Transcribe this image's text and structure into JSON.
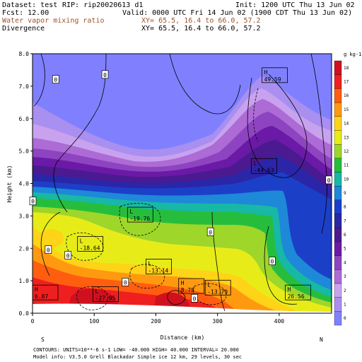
{
  "header": {
    "dataset": "Dataset: test",
    "rip": "RIP: rip20020613 d1",
    "init": "Init: 1200 UTC Thu 13 Jun 02",
    "fcst": "Fcst:   12.00",
    "valid": "Valid: 0000 UTC Fri 14 Jun 02 (1900 CDT Thu 13 Jun 02)",
    "field1": "Water vapor mixing ratio",
    "field1_xy": "XY=  65.5, 16.4 to  66.0, 57.2",
    "field2": "Divergence",
    "field2_xy": "XY=  65.5, 16.4 to  66.0, 57.2",
    "field1_color": "#a0522d"
  },
  "footer": {
    "line1": "CONTOURS:  UNITS=10**-6 s-1   LOW=  -40.000     HIGH=  40.000     INTERVAL=   20.000",
    "line2": "Model info: V3.5.0   Grell     Blackadar   Simple ice     12 km,  29 levels,   30 sec"
  },
  "chart_data": {
    "type": "heatmap",
    "xlabel": "Distance (km)",
    "ylabel": "Height (km)",
    "xlim": [
      0,
      485
    ],
    "ylim": [
      0,
      8
    ],
    "x_ticks": [
      0,
      100,
      200,
      300,
      400
    ],
    "y_ticks": [
      "0.0",
      "1.0",
      "2.0",
      "3.0",
      "4.0",
      "5.0",
      "6.0",
      "7.0",
      "8.0"
    ],
    "x_end_labels": {
      "left": "S",
      "right": "N"
    },
    "colorbar_unit": "g kg-1",
    "colorbar_ticks": [
      0,
      1,
      2,
      3,
      4,
      5,
      6,
      7,
      8,
      9,
      10,
      11,
      12,
      13,
      14,
      15,
      16,
      17,
      18
    ],
    "colorbar_colors": [
      "#8080ff",
      "#a98ff0",
      "#c8a2ef",
      "#ad6bd6",
      "#8e44c0",
      "#6a1aa6",
      "#4b1a90",
      "#2b25a8",
      "#1c3fc8",
      "#1e88d9",
      "#17b8a5",
      "#27bd3c",
      "#9ed62a",
      "#e7ec19",
      "#ffd317",
      "#ff9a10",
      "#ff5e10",
      "#f01f1f",
      "#d0101f"
    ],
    "contour_labels": [
      {
        "text": "0",
        "x": 37,
        "z": 7.2
      },
      {
        "text": "0",
        "x": 117,
        "z": 7.35
      },
      {
        "text": "0",
        "x": 480,
        "z": 4.1
      },
      {
        "text": "0",
        "x": 0,
        "z": 3.45
      },
      {
        "text": "0",
        "x": 288,
        "z": 2.5
      },
      {
        "text": "0",
        "x": 25,
        "z": 1.95
      },
      {
        "text": "0",
        "x": 57,
        "z": 1.78
      },
      {
        "text": "0",
        "x": 388,
        "z": 1.6
      },
      {
        "text": "0",
        "x": 150,
        "z": 0.95
      },
      {
        "text": "0",
        "x": 262,
        "z": 0.45
      }
    ],
    "extrema": [
      {
        "kind": "H",
        "value": "49.59",
        "x": 372,
        "z": 7.35
      },
      {
        "kind": "L",
        "value": "-44.63",
        "x": 355,
        "z": 4.55
      },
      {
        "kind": "L",
        "value": "-19.76",
        "x": 154,
        "z": 3.05
      },
      {
        "kind": "L",
        "value": "-18.64",
        "x": 73,
        "z": 2.15
      },
      {
        "kind": "L",
        "value": "-13.14",
        "x": 184,
        "z": 1.45
      },
      {
        "kind": "H",
        "value": "8.78",
        "x": 237,
        "z": 0.85
      },
      {
        "kind": "L",
        "value": "-13.79",
        "x": 280,
        "z": 0.8
      },
      {
        "kind": "H",
        "value": "6.87",
        "x": 0,
        "z": 0.65
      },
      {
        "kind": "L",
        "value": "-27.95",
        "x": 98,
        "z": 0.6
      },
      {
        "kind": "H",
        "value": "26.56",
        "x": 410,
        "z": 0.65
      }
    ]
  }
}
